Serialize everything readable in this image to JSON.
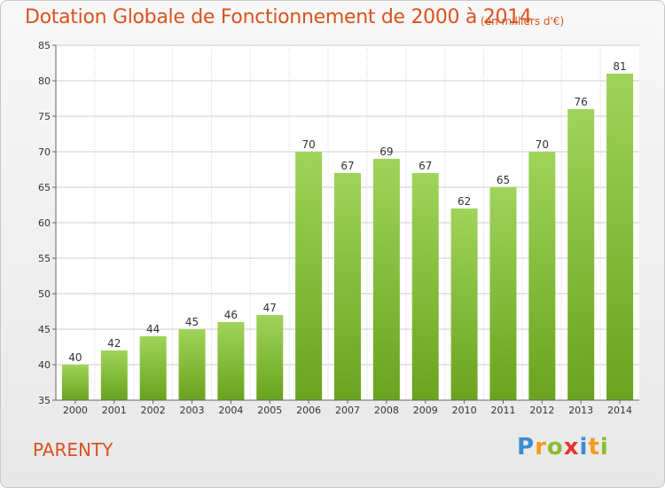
{
  "header": {
    "title": "Dotation Globale de Fonctionnement de 2000 à 2014",
    "unit": "(en milliers d'€)"
  },
  "footer": {
    "commune": "PARENTY",
    "logo_letters": [
      "P",
      "r",
      "o",
      "x",
      "i",
      "t",
      "i"
    ],
    "logo_colors": [
      "#3a8ccf",
      "#f39a1c",
      "#8cbc2d",
      "#e5352b",
      "#3a8ccf",
      "#f39a1c",
      "#8cbc2d"
    ]
  },
  "colors": {
    "bar_light": "#9fd45a",
    "bar_dark": "#6aa31e",
    "title": "#d9531e",
    "grid": "#cccccc"
  },
  "chart_data": {
    "type": "bar",
    "title": "Dotation Globale de Fonctionnement de 2000 à 2014",
    "subtitle": "(en milliers d'€)",
    "xlabel": "",
    "ylabel": "",
    "categories": [
      "2000",
      "2001",
      "2002",
      "2003",
      "2004",
      "2005",
      "2006",
      "2007",
      "2008",
      "2009",
      "2010",
      "2011",
      "2012",
      "2013",
      "2014"
    ],
    "values": [
      40,
      42,
      44,
      45,
      46,
      47,
      70,
      67,
      69,
      67,
      62,
      65,
      70,
      76,
      81
    ],
    "ylim": [
      35,
      85
    ],
    "yticks": [
      35,
      40,
      45,
      50,
      55,
      60,
      65,
      70,
      75,
      80,
      85
    ],
    "grid": true,
    "data_labels": true
  }
}
